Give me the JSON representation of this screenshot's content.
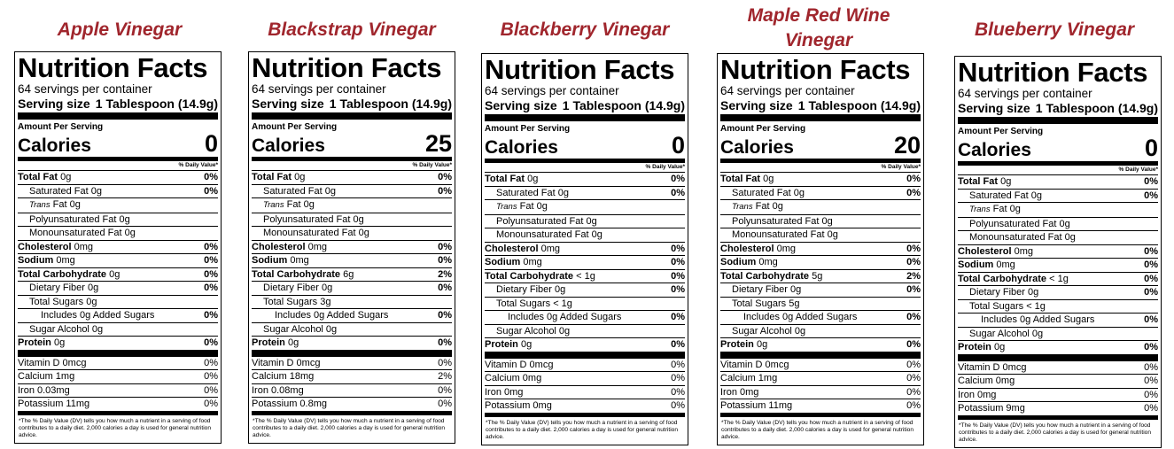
{
  "labels": [
    {
      "title": "Apple Vinegar",
      "heading": "Nutrition Facts",
      "servings": "64 servings per container",
      "serving_size_label": "Serving size",
      "serving_size_value": "1 Tablespoon (14.9g)",
      "amount_per_serving": "Amount Per Serving",
      "calories_label": "Calories",
      "calories": "0",
      "dv_header": "% Daily Value*",
      "total_fat_label": "Total Fat",
      "total_fat": "0g",
      "total_fat_dv": "0%",
      "sat_fat_label": "Saturated Fat 0g",
      "sat_fat_dv": "0%",
      "trans_label": "Trans",
      "trans_value": "Fat 0g",
      "poly_fat": "Polyunsaturated Fat 0g",
      "mono_fat": "Monounsaturated Fat 0g",
      "chol_label": "Cholesterol",
      "chol": "0mg",
      "chol_dv": "0%",
      "sodium_label": "Sodium",
      "sodium": "0mg",
      "sodium_dv": "0%",
      "carb_label": "Total Carbohydrate",
      "carb": "0g",
      "carb_dv": "0%",
      "fiber": "Dietary Fiber 0g",
      "fiber_dv": "0%",
      "sugars": "Total Sugars 0g",
      "added_sugars": "Includes 0g Added Sugars",
      "added_sugars_dv": "0%",
      "sugar_alcohol": "Sugar Alcohol 0g",
      "protein_label": "Protein",
      "protein": "0g",
      "protein_dv": "0%",
      "vit_d": "Vitamin D 0mcg",
      "vit_d_dv": "0%",
      "calcium": "Calcium 1mg",
      "calcium_dv": "0%",
      "iron": "Iron 0.03mg",
      "iron_dv": "0%",
      "potassium": "Potassium 11mg",
      "potassium_dv": "0%",
      "footnote": "*The % Daily Value (DV) tells you how much a nutrient in a serving of food contributes to a daily diet. 2,000 calories a day is used for general nutrition advice."
    },
    {
      "title": "Blackstrap Vinegar",
      "heading": "Nutrition Facts",
      "servings": "64 servings per container",
      "serving_size_label": "Serving size",
      "serving_size_value": "1 Tablespoon (14.9g)",
      "amount_per_serving": "Amount Per Serving",
      "calories_label": "Calories",
      "calories": "25",
      "dv_header": "% Daily Value*",
      "total_fat_label": "Total Fat",
      "total_fat": "0g",
      "total_fat_dv": "0%",
      "sat_fat_label": "Saturated Fat 0g",
      "sat_fat_dv": "0%",
      "trans_label": "Trans",
      "trans_value": "Fat 0g",
      "poly_fat": "Polyunsaturated Fat 0g",
      "mono_fat": "Monounsaturated Fat 0g",
      "chol_label": "Cholesterol",
      "chol": "0mg",
      "chol_dv": "0%",
      "sodium_label": "Sodium",
      "sodium": "0mg",
      "sodium_dv": "0%",
      "carb_label": "Total Carbohydrate",
      "carb": "6g",
      "carb_dv": "2%",
      "fiber": "Dietary Fiber 0g",
      "fiber_dv": "0%",
      "sugars": "Total Sugars 3g",
      "added_sugars": "Includes 0g Added Sugars",
      "added_sugars_dv": "0%",
      "sugar_alcohol": "Sugar Alcohol 0g",
      "protein_label": "Protein",
      "protein": "0g",
      "protein_dv": "0%",
      "vit_d": "Vitamin D 0mcg",
      "vit_d_dv": "0%",
      "calcium": "Calcium 18mg",
      "calcium_dv": "2%",
      "iron": "Iron 0.08mg",
      "iron_dv": "0%",
      "potassium": "Potassium 0.8mg",
      "potassium_dv": "0%",
      "footnote": "*The % Daily Value (DV) tells you how much a nutrient in a serving of food contributes to a daily diet. 2,000 calories a day is used for general nutrition advice."
    },
    {
      "title": "Blackberry Vinegar",
      "heading": "Nutrition Facts",
      "servings": "64 servings per container",
      "serving_size_label": "Serving size",
      "serving_size_value": "1 Tablespoon (14.9g)",
      "amount_per_serving": "Amount Per Serving",
      "calories_label": "Calories",
      "calories": "0",
      "dv_header": "% Daily Value*",
      "total_fat_label": "Total Fat",
      "total_fat": "0g",
      "total_fat_dv": "0%",
      "sat_fat_label": "Saturated Fat 0g",
      "sat_fat_dv": "0%",
      "trans_label": "Trans",
      "trans_value": "Fat 0g",
      "poly_fat": "Polyunsaturated Fat 0g",
      "mono_fat": "Monounsaturated Fat 0g",
      "chol_label": "Cholesterol",
      "chol": "0mg",
      "chol_dv": "0%",
      "sodium_label": "Sodium",
      "sodium": "0mg",
      "sodium_dv": "0%",
      "carb_label": "Total Carbohydrate",
      "carb": "< 1g",
      "carb_dv": "0%",
      "fiber": "Dietary Fiber 0g",
      "fiber_dv": "0%",
      "sugars": "Total Sugars < 1g",
      "added_sugars": "Includes 0g Added Sugars",
      "added_sugars_dv": "0%",
      "sugar_alcohol": "Sugar Alcohol 0g",
      "protein_label": "Protein",
      "protein": "0g",
      "protein_dv": "0%",
      "vit_d": "Vitamin D 0mcg",
      "vit_d_dv": "0%",
      "calcium": "Calcium 0mg",
      "calcium_dv": "0%",
      "iron": "Iron 0mg",
      "iron_dv": "0%",
      "potassium": "Potassium 0mg",
      "potassium_dv": "0%",
      "footnote": "*The % Daily Value (DV) tells you how much a nutrient in a serving of food contributes to a daily diet. 2,000 calories a day is used for general nutrition advice."
    },
    {
      "title": "Maple Red Wine Vinegar",
      "heading": "Nutrition Facts",
      "servings": "64 servings per container",
      "serving_size_label": "Serving size",
      "serving_size_value": "1 Tablespoon (14.9g)",
      "amount_per_serving": "Amount Per Serving",
      "calories_label": "Calories",
      "calories": "20",
      "dv_header": "% Daily Value*",
      "total_fat_label": "Total Fat",
      "total_fat": "0g",
      "total_fat_dv": "0%",
      "sat_fat_label": "Saturated Fat 0g",
      "sat_fat_dv": "0%",
      "trans_label": "Trans",
      "trans_value": "Fat 0g",
      "poly_fat": "Polyunsaturated Fat 0g",
      "mono_fat": "Monounsaturated Fat 0g",
      "chol_label": "Cholesterol",
      "chol": "0mg",
      "chol_dv": "0%",
      "sodium_label": "Sodium",
      "sodium": "0mg",
      "sodium_dv": "0%",
      "carb_label": "Total Carbohydrate",
      "carb": "5g",
      "carb_dv": "2%",
      "fiber": "Dietary Fiber 0g",
      "fiber_dv": "0%",
      "sugars": "Total Sugars 5g",
      "added_sugars": "Includes 0g Added Sugars",
      "added_sugars_dv": "0%",
      "sugar_alcohol": "Sugar Alcohol 0g",
      "protein_label": "Protein",
      "protein": "0g",
      "protein_dv": "0%",
      "vit_d": "Vitamin D 0mcg",
      "vit_d_dv": "0%",
      "calcium": "Calcium 1mg",
      "calcium_dv": "0%",
      "iron": "Iron 0mg",
      "iron_dv": "0%",
      "potassium": "Potassium 11mg",
      "potassium_dv": "0%",
      "footnote": "*The % Daily Value (DV) tells you how much a nutrient in a serving of food contributes to a daily diet. 2,000 calories a day is used for general nutrition advice."
    },
    {
      "title": "Blueberry Vinegar",
      "heading": "Nutrition Facts",
      "servings": "64 servings per container",
      "serving_size_label": "Serving size",
      "serving_size_value": "1 Tablespoon (14.9g)",
      "amount_per_serving": "Amount Per Serving",
      "calories_label": "Calories",
      "calories": "0",
      "dv_header": "% Daily Value*",
      "total_fat_label": "Total Fat",
      "total_fat": "0g",
      "total_fat_dv": "0%",
      "sat_fat_label": "Saturated Fat 0g",
      "sat_fat_dv": "0%",
      "trans_label": "Trans",
      "trans_value": "Fat 0g",
      "poly_fat": "Polyunsaturated Fat 0g",
      "mono_fat": "Monounsaturated Fat 0g",
      "chol_label": "Cholesterol",
      "chol": "0mg",
      "chol_dv": "0%",
      "sodium_label": "Sodium",
      "sodium": "0mg",
      "sodium_dv": "0%",
      "carb_label": "Total Carbohydrate",
      "carb": "< 1g",
      "carb_dv": "0%",
      "fiber": "Dietary Fiber 0g",
      "fiber_dv": "0%",
      "sugars": "Total Sugars < 1g",
      "added_sugars": "Includes 0g Added Sugars",
      "added_sugars_dv": "0%",
      "sugar_alcohol": "Sugar Alcohol 0g",
      "protein_label": "Protein",
      "protein": "0g",
      "protein_dv": "0%",
      "vit_d": "Vitamin D 0mcg",
      "vit_d_dv": "0%",
      "calcium": "Calcium 0mg",
      "calcium_dv": "0%",
      "iron": "Iron 0mg",
      "iron_dv": "0%",
      "potassium": "Potassium 9mg",
      "potassium_dv": "0%",
      "footnote": "*The % Daily Value (DV) tells you how much a nutrient in a serving of food contributes to a daily diet. 2,000 calories a day is used for general nutrition advice."
    }
  ],
  "colors": {
    "title": "#a0262d",
    "ink": "#000000",
    "background": "#ffffff"
  }
}
